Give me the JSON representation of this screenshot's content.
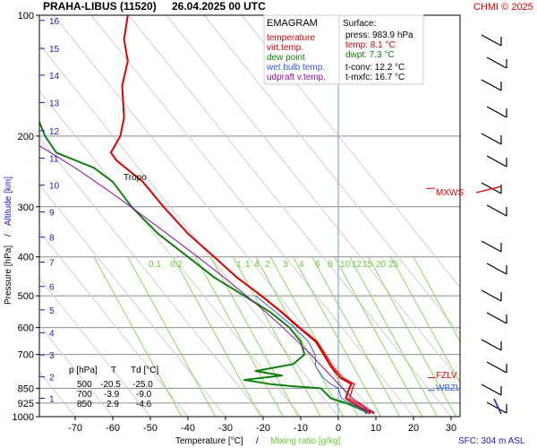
{
  "header": {
    "title": "PRAHA-LIBUS (11520)",
    "datetime": "26.04.2025 00 UTC",
    "credit": "CHMI © 2025"
  },
  "legend": {
    "heading": "EMAGRAM",
    "items": [
      {
        "label": "temperature",
        "color": "#e00000"
      },
      {
        "label": "virt.temp.",
        "color": "#e00000"
      },
      {
        "label": "dew point",
        "color": "#108010"
      },
      {
        "label": "wet bulb temp.",
        "color": "#3060e0"
      },
      {
        "label": "udpraft v.temp.",
        "color": "#9010a0"
      }
    ]
  },
  "surface": {
    "heading": "Surface:",
    "press": "press: 983.9 hPa",
    "temp": "temp: 8.1 °C",
    "dwpt": "dwpt: 7.3 °C",
    "tconv": "t-conv: 12.2 °C",
    "tmxfc": "t-mxfc: 16.7 °C"
  },
  "table": {
    "headers": [
      "p [hPa]",
      "T",
      "Td [°C]"
    ],
    "rows": [
      [
        "500",
        "-20.5",
        "-25.0"
      ],
      [
        "700",
        "-3.9",
        "-9.0"
      ],
      [
        "850",
        "2.9",
        "-4.6"
      ]
    ]
  },
  "annotations": {
    "tropo": "Tropo",
    "mxws": "MXWS",
    "fzlv": "FZLV",
    "wbzl": "WBZL",
    "sfc": "SFC: 304 m ASL"
  },
  "axes": {
    "ylabel_pressure": "Pressure [hPa]",
    "ylabel_sep": "/",
    "ylabel_alt": "Altitude [km]",
    "xlabel_temp": "Temperature [°C]",
    "xlabel_sep": "/",
    "xlabel_mix": "Mixing ratio [g/kg]"
  },
  "colors": {
    "temperature": "#e00000",
    "dewpoint": "#108010",
    "wetbulb": "#3060e0",
    "parcel": "#9010a0",
    "mixing": "#8fd860",
    "altitude": "#1a1acc",
    "isotherm_zero": "#5a9bd8"
  },
  "chart_data": {
    "type": "line",
    "title": "EMAGRAM",
    "xlabel": "Temperature [°C]",
    "ylabel": "Pressure [hPa]",
    "xlim": [
      -80,
      32
    ],
    "ylim": [
      1000,
      100
    ],
    "y_scale": "log",
    "x_ticks": [
      -70,
      -60,
      -50,
      -40,
      -30,
      -20,
      -10,
      0,
      10,
      20,
      30
    ],
    "y_ticks": [
      100,
      200,
      300,
      400,
      500,
      600,
      700,
      850,
      925,
      1000
    ],
    "altitude_ticks_km": [
      1,
      2,
      3,
      4,
      5,
      6,
      7,
      8,
      9,
      10,
      11,
      12,
      13,
      14,
      15,
      16
    ],
    "mixing_ratio_labels": [
      "0.1",
      "0.2",
      "1",
      "1",
      "4",
      "2",
      "3",
      "4",
      "6",
      "8",
      "10",
      "12",
      "15",
      "20",
      "25"
    ],
    "grid": true,
    "series": [
      {
        "name": "temperature",
        "points": [
          [
            8.1,
            984
          ],
          [
            8.5,
            975
          ],
          [
            6,
            950
          ],
          [
            4,
            925
          ],
          [
            2,
            900
          ],
          [
            2.9,
            850
          ],
          [
            3.5,
            830
          ],
          [
            0.5,
            800
          ],
          [
            -2,
            750
          ],
          [
            -3.9,
            700
          ],
          [
            -6,
            650
          ],
          [
            -10.5,
            600
          ],
          [
            -15,
            550
          ],
          [
            -20.5,
            500
          ],
          [
            -27,
            450
          ],
          [
            -33,
            400
          ],
          [
            -40,
            350
          ],
          [
            -46.5,
            300
          ],
          [
            -52,
            260
          ],
          [
            -59,
            230
          ],
          [
            -60.5,
            220
          ],
          [
            -58,
            200
          ],
          [
            -57,
            180
          ],
          [
            -57.5,
            150
          ],
          [
            -56,
            130
          ],
          [
            -57,
            115
          ],
          [
            -56,
            100
          ]
        ]
      },
      {
        "name": "virt.temp.",
        "points": [
          [
            9.3,
            984
          ],
          [
            9.5,
            975
          ],
          [
            7,
            950
          ],
          [
            5,
            925
          ],
          [
            3,
            900
          ],
          [
            3.8,
            850
          ],
          [
            4.3,
            830
          ],
          [
            1.2,
            800
          ],
          [
            -1.5,
            750
          ],
          [
            -3.4,
            700
          ],
          [
            -5.6,
            650
          ],
          [
            -10.2,
            600
          ],
          [
            -14.8,
            550
          ],
          [
            -20.3,
            500
          ],
          [
            -26.9,
            450
          ],
          [
            -33,
            400
          ]
        ]
      },
      {
        "name": "dew point",
        "points": [
          [
            7.3,
            984
          ],
          [
            7.5,
            975
          ],
          [
            5,
            950
          ],
          [
            2,
            925
          ],
          [
            -2,
            900
          ],
          [
            -4.6,
            850
          ],
          [
            -12,
            840
          ],
          [
            -18,
            830
          ],
          [
            -25,
            810
          ],
          [
            -15,
            790
          ],
          [
            -22,
            770
          ],
          [
            -12,
            740
          ],
          [
            -9,
            700
          ],
          [
            -10,
            650
          ],
          [
            -13,
            600
          ],
          [
            -18,
            550
          ],
          [
            -25,
            500
          ],
          [
            -33,
            450
          ],
          [
            -40,
            400
          ],
          [
            -48,
            350
          ],
          [
            -55,
            300
          ],
          [
            -60,
            260
          ],
          [
            -65,
            240
          ],
          [
            -75,
            220
          ],
          [
            -78,
            200
          ],
          [
            -80,
            180
          ]
        ]
      },
      {
        "name": "wet bulb temp.",
        "points": [
          [
            7.6,
            984
          ],
          [
            7.8,
            975
          ],
          [
            5.5,
            950
          ],
          [
            3,
            925
          ],
          [
            0.8,
            900
          ],
          [
            0,
            850
          ],
          [
            -2,
            830
          ],
          [
            -4,
            800
          ],
          [
            -6,
            750
          ],
          [
            -6.2,
            700
          ],
          [
            -8,
            650
          ],
          [
            -11.7,
            600
          ],
          [
            -16.5,
            550
          ],
          [
            -22,
            500
          ]
        ]
      },
      {
        "name": "udpraft v.temp.",
        "points": [
          [
            9.3,
            984
          ],
          [
            7.5,
            950
          ],
          [
            5.7,
            925
          ],
          [
            3.8,
            900
          ],
          [
            1.2,
            850
          ],
          [
            -1.5,
            800
          ],
          [
            -4.3,
            750
          ],
          [
            -7.3,
            700
          ],
          [
            -10.8,
            650
          ],
          [
            -14.7,
            600
          ],
          [
            -19.2,
            550
          ],
          [
            -24.4,
            500
          ],
          [
            -30.4,
            450
          ],
          [
            -37.4,
            400
          ],
          [
            -45.6,
            350
          ],
          [
            -55.2,
            300
          ],
          [
            -62,
            270
          ],
          [
            -70,
            240
          ],
          [
            -80,
            210
          ]
        ]
      }
    ]
  }
}
